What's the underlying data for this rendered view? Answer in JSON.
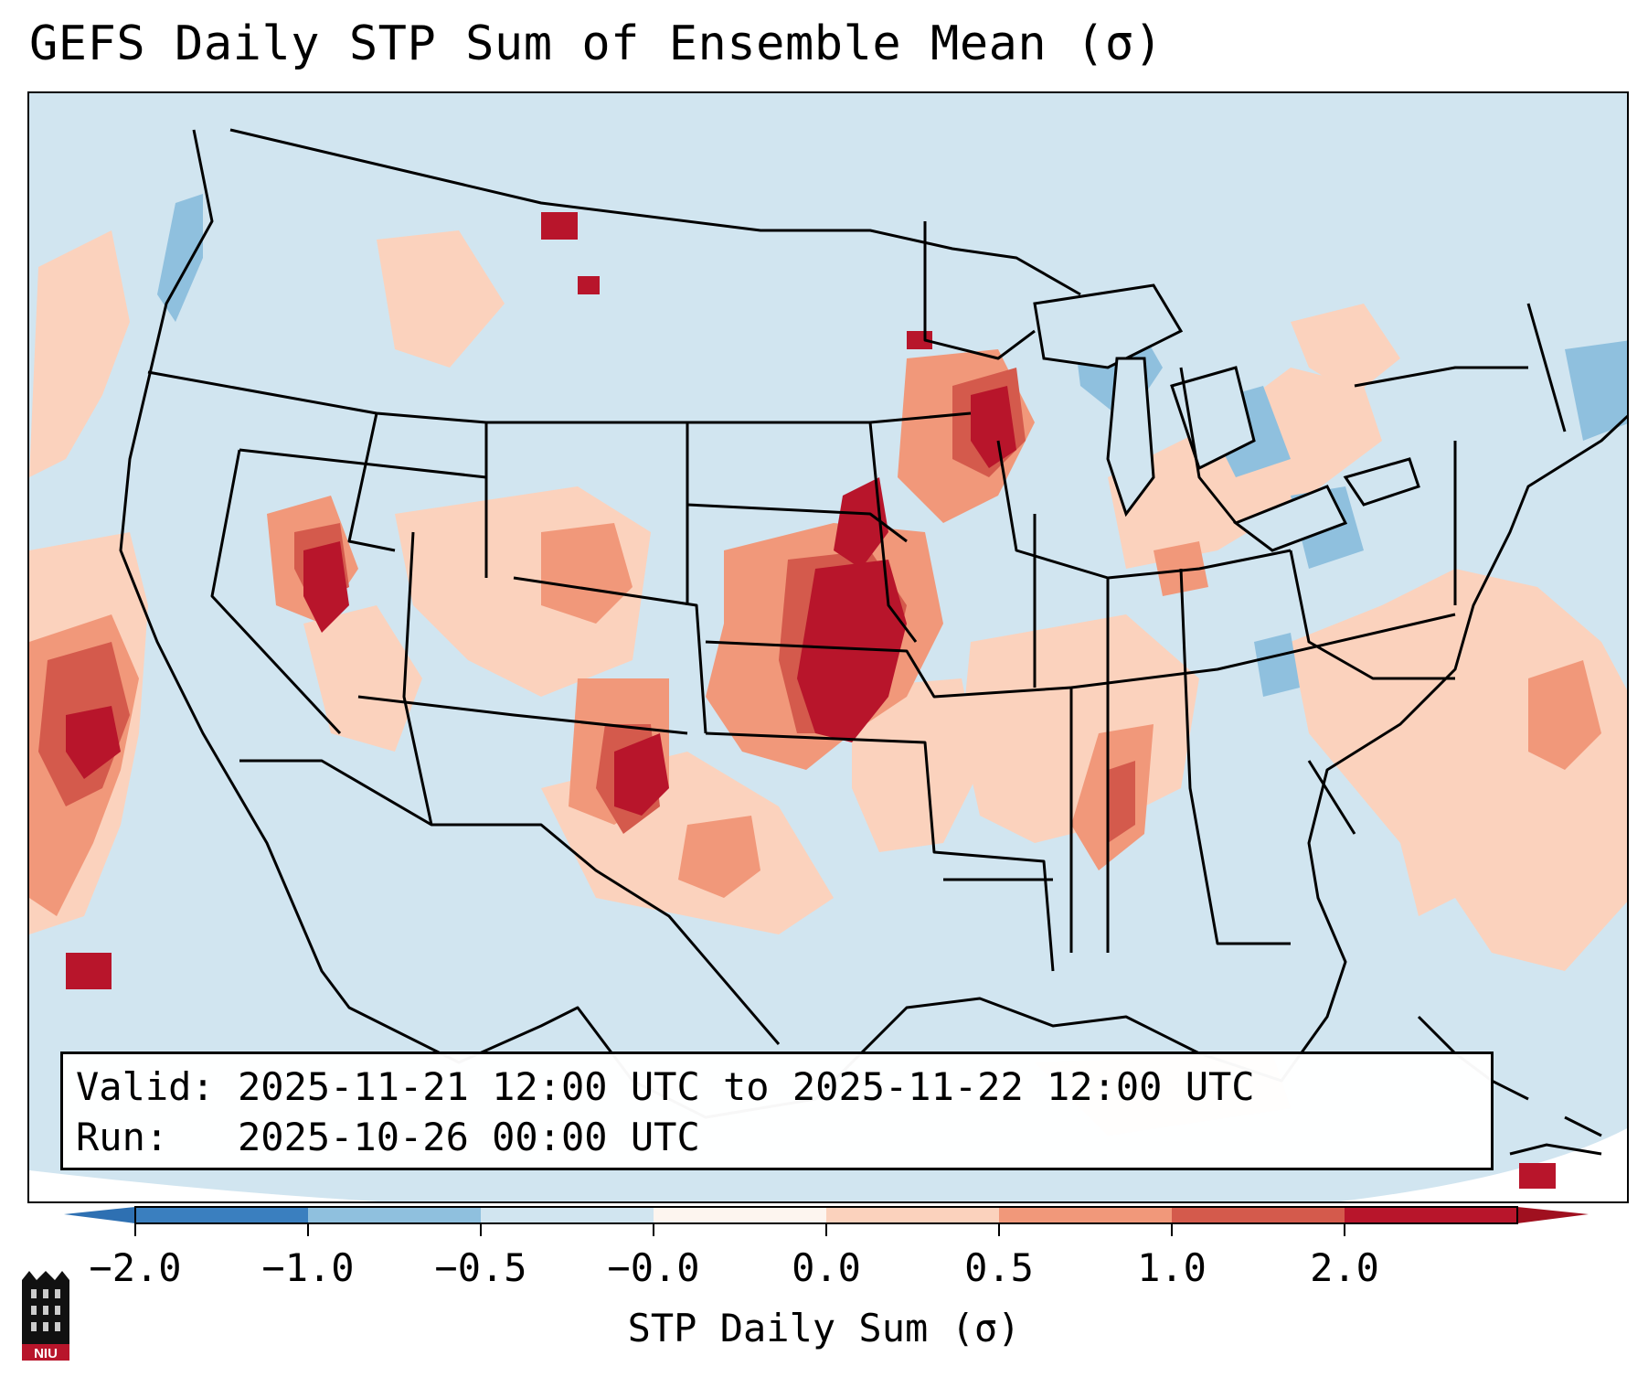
{
  "title": "GEFS Daily STP Sum of Ensemble Mean (σ)",
  "info": {
    "valid_line": "Valid: 2025-11-21 12:00 UTC to 2025-11-22 12:00 UTC",
    "run_line": "Run:   2025-10-26 00:00 UTC"
  },
  "colorbar": {
    "label": "STP Daily Sum (σ)",
    "ticks": [
      "−2.0",
      "−1.0",
      "−0.5",
      "−0.0",
      "0.0",
      "0.5",
      "1.0",
      "2.0"
    ],
    "colors": [
      "#3a7fbf",
      "#8fc0de",
      "#d1e5f0",
      "#fdf5ef",
      "#fbd2bd",
      "#f1987a",
      "#d45a4c",
      "#b8152b"
    ],
    "under_color": "#2e70b2",
    "over_color": "#a0101f"
  },
  "map": {
    "ocean_color": "#d1e5f0",
    "border_color": "#000000"
  },
  "logo": {
    "text": "NIU"
  }
}
